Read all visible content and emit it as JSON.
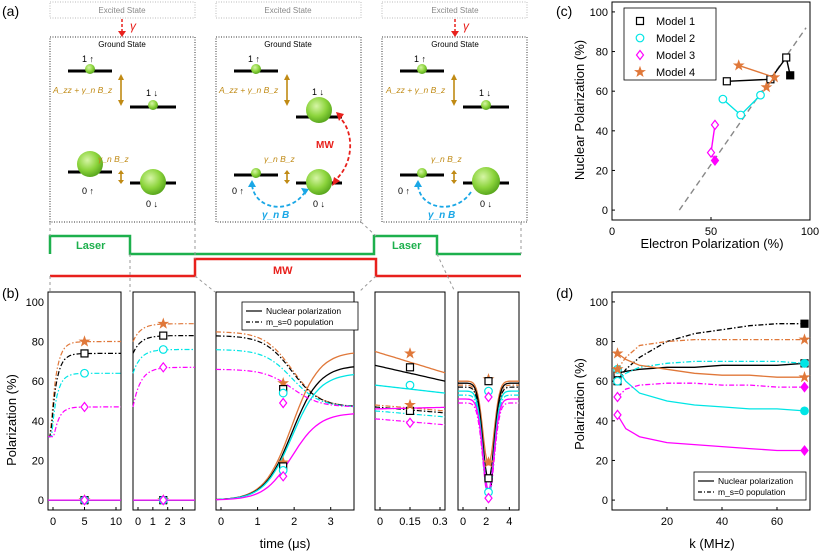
{
  "panel_labels": {
    "a": "(a)",
    "b": "(b)",
    "c": "(c)",
    "d": "(d)"
  },
  "energy_diagram": {
    "excited_state": "Excited State",
    "ground_state": "Ground State",
    "gamma": "γ",
    "level_1_up": "1 ↑",
    "level_1_down": "1 ↓",
    "level_0_up": "0 ↑",
    "level_0_down": "0 ↓",
    "coupling_label": "A_zz + γ_n B_z",
    "zeeman_label": "γ_n B_z",
    "mw_label": "MW",
    "gamma_b_label": "γ_n B"
  },
  "sequence": {
    "laser_label": "Laser",
    "mw_label": "MW"
  },
  "colors": {
    "model1": "#000000",
    "model2": "#00e5e5",
    "model3": "#ff00ff",
    "model4": "#e0783a",
    "laser": "#1db04d",
    "mw": "#e8201c",
    "gold": "#c08a14",
    "mw_arrow": "#e8201c",
    "rf_arrow": "#1aa7e6"
  },
  "chart_data": [
    {
      "type": "line",
      "title": "(b)",
      "ylabel": "Polarization (%)",
      "xlabel": "time (μs)",
      "ylim": [
        -5,
        105
      ],
      "yticks": [
        0,
        20,
        40,
        60,
        80,
        100
      ],
      "legend": [
        "Nuclear polarization",
        "m_s=0 population"
      ],
      "subplots": [
        {
          "xticks": [
            "0",
            "5",
            "10"
          ],
          "xlim": [
            0,
            10
          ]
        },
        {
          "xticks": [
            "0",
            "1",
            "2",
            "3"
          ],
          "xlim": [
            0,
            3.5
          ]
        },
        {
          "xticks": [
            "0",
            "1",
            "2",
            "3"
          ],
          "xlim": [
            0,
            3.5
          ]
        },
        {
          "xticks": [
            "0",
            "0.15",
            "0.3"
          ],
          "xlim": [
            0,
            0.3
          ]
        },
        {
          "xticks": [
            "0",
            "2",
            "4"
          ],
          "xlim": [
            0,
            4.4
          ]
        }
      ],
      "markers": {
        "model1": "square",
        "model2": "circle",
        "model3": "diamond",
        "model4": "star"
      },
      "series_levels": {
        "model1": 74,
        "model2": 64,
        "model3": 47,
        "model4": 80
      }
    },
    {
      "type": "scatter",
      "title": "(c)",
      "xlabel": "Electron Polarization (%)",
      "ylabel": "Nuclear Polarization (%)",
      "xlim": [
        0,
        100
      ],
      "ylim": [
        -5,
        105
      ],
      "xticks": [
        "0",
        "50",
        "100"
      ],
      "yticks": [
        "0",
        "20",
        "40",
        "60",
        "80",
        "100"
      ],
      "legend": [
        "Model 1",
        "Model 2",
        "Model 3",
        "Model 4"
      ],
      "series": [
        {
          "name": "Model 1",
          "points": [
            [
              58,
              65
            ],
            [
              80,
              66
            ],
            [
              88,
              77
            ],
            [
              90,
              68
            ]
          ]
        },
        {
          "name": "Model 2",
          "points": [
            [
              56,
              56
            ],
            [
              65,
              48
            ],
            [
              75,
              58
            ]
          ]
        },
        {
          "name": "Model 3",
          "points": [
            [
              52,
              43
            ],
            [
              50,
              29
            ],
            [
              52,
              25
            ]
          ]
        },
        {
          "name": "Model 4",
          "points": [
            [
              64,
              73
            ],
            [
              82,
              67
            ],
            [
              78,
              62
            ]
          ]
        }
      ]
    },
    {
      "type": "line",
      "title": "(d)",
      "xlabel": "k (MHz)",
      "ylabel": "Polarization (%)",
      "xlim": [
        0,
        72
      ],
      "ylim": [
        -5,
        105
      ],
      "xticks": [
        "20",
        "40",
        "60"
      ],
      "yticks": [
        "0",
        "20",
        "40",
        "60",
        "80",
        "100"
      ],
      "legend": [
        "Nuclear polarization",
        "m_s=0 population"
      ],
      "x": [
        2,
        5,
        10,
        20,
        30,
        40,
        50,
        60,
        70
      ],
      "series": [
        {
          "name": "Model 1 nuclear",
          "values": [
            64,
            65,
            66,
            67,
            67,
            68,
            68,
            68,
            69
          ]
        },
        {
          "name": "Model 1 ms0",
          "values": [
            60,
            66,
            72,
            80,
            84,
            86,
            88,
            89,
            89
          ]
        },
        {
          "name": "Model 2 nuclear",
          "values": [
            66,
            60,
            54,
            50,
            48,
            47,
            46,
            46,
            45
          ]
        },
        {
          "name": "Model 2 ms0",
          "values": [
            60,
            64,
            67,
            69,
            70,
            70,
            70,
            70,
            69
          ]
        },
        {
          "name": "Model 3 nuclear",
          "values": [
            43,
            36,
            32,
            29,
            28,
            27,
            26,
            25,
            25
          ]
        },
        {
          "name": "Model 3 ms0",
          "values": [
            52,
            56,
            58,
            59,
            59,
            58,
            58,
            57,
            57
          ]
        },
        {
          "name": "Model 4 nuclear",
          "values": [
            74,
            71,
            68,
            66,
            64,
            63,
            63,
            62,
            62
          ]
        },
        {
          "name": "Model 4 ms0",
          "values": [
            66,
            72,
            78,
            80,
            81,
            81,
            81,
            81,
            81
          ]
        }
      ]
    }
  ]
}
